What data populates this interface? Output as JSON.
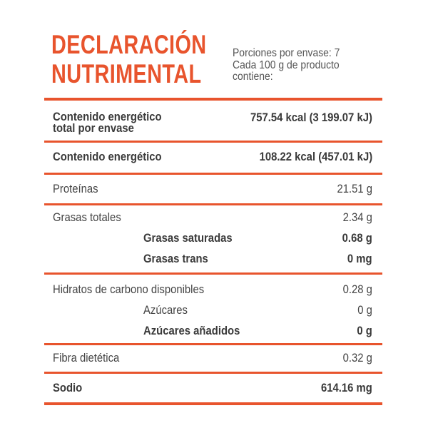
{
  "header": {
    "title_line1": "DECLARACIÓN",
    "title_line2": "NUTRIMENTAL",
    "serving_line1": "Porciones  por envase: 7",
    "serving_line2": "Cada 100 g de producto",
    "serving_line3": "contiene:"
  },
  "rows": {
    "energy_total_label_1": "Contenido energético",
    "energy_total_label_2": "total por envase",
    "energy_total_value": "757.54 kcal (3 199.07 kJ)",
    "energy_label": "Contenido energético",
    "energy_value": "108.22 kcal (457.01 kJ)",
    "protein_label": "Proteínas",
    "protein_value": "21.51 g",
    "fat_label": "Grasas totales",
    "fat_value": "2.34 g",
    "sat_fat_label": "Grasas saturadas",
    "sat_fat_value": "0.68 g",
    "trans_fat_label": "Grasas trans",
    "trans_fat_value": "0 mg",
    "carbs_label": "Hidratos de carbono disponibles",
    "carbs_value": "0.28 g",
    "sugars_label": "Azúcares",
    "sugars_value": "0 g",
    "added_sugars_label": "Azúcares añadidos",
    "added_sugars_value": "0 g",
    "fiber_label": "Fibra dietética",
    "fiber_value": "0.32 g",
    "sodium_label": "Sodio",
    "sodium_value": "614.16 mg"
  },
  "colors": {
    "accent": "#e8542d",
    "text": "#444444"
  }
}
